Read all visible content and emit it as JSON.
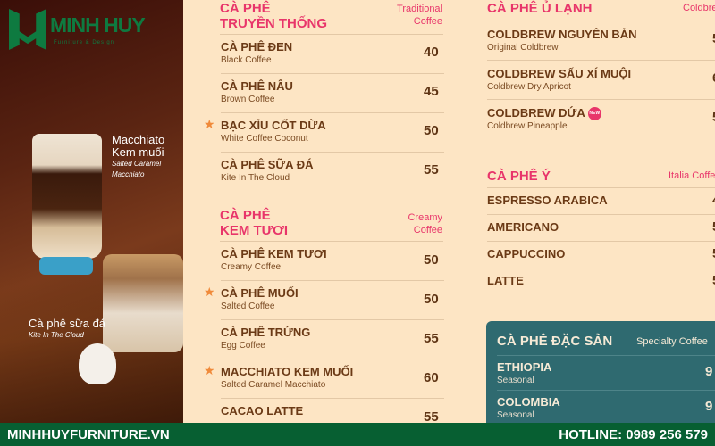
{
  "brand": {
    "name": "MINH HUY",
    "tagline": "Furniture & Design",
    "color": "#0e7a40"
  },
  "photo": {
    "caption1": {
      "title": "Macchiato Kem muối",
      "sub": "Salted Caramel Macchiato"
    },
    "caption2": {
      "title": "Cà phê sữa đá",
      "sub": "Kite In The Cloud"
    }
  },
  "traditional": {
    "title1": "CÀ PHÊ",
    "title2": "TRUYỀN THỐNG",
    "sub1": "Traditional",
    "sub2": "Coffee",
    "items": [
      {
        "name": "CÀ PHÊ ĐEN",
        "sub": "Black Coffee",
        "price": "40"
      },
      {
        "name": "CÀ PHÊ NÂU",
        "sub": "Brown Coffee",
        "price": "45"
      },
      {
        "name": "BẠC XỈU CỐT DỪA",
        "sub": "White Coffee Coconut",
        "price": "50",
        "star": true
      },
      {
        "name": "CÀ PHÊ SỮA ĐÁ",
        "sub": "Kite In The Cloud",
        "price": "55"
      }
    ]
  },
  "creamy": {
    "title1": "CÀ PHÊ",
    "title2": "KEM TƯƠI",
    "sub1": "Creamy",
    "sub2": "Coffee",
    "items": [
      {
        "name": "CÀ PHÊ KEM TƯƠI",
        "sub": "Creamy Coffee",
        "price": "50"
      },
      {
        "name": "CÀ PHÊ MUỐI",
        "sub": "Salted Coffee",
        "price": "50",
        "star": true
      },
      {
        "name": "CÀ PHÊ TRỨNG",
        "sub": "Egg Coffee",
        "price": "55"
      },
      {
        "name": "MACCHIATO KEM MUỐI",
        "sub": "Salted Caramel Macchiato",
        "price": "60",
        "star": true
      },
      {
        "name": "CACAO LATTE",
        "sub": "",
        "price": "55"
      }
    ]
  },
  "coldbrew": {
    "title": "CÀ PHÊ Ủ LẠNH",
    "sub": "Coldbrew",
    "items": [
      {
        "name": "COLDBREW NGUYÊN BẢN",
        "sub": "Original Coldbrew",
        "price": "5"
      },
      {
        "name": "COLDBREW SẤU XÍ MUỘI",
        "sub": "Coldbrew Dry Apricot",
        "price": "6"
      },
      {
        "name": "COLDBREW DỨA",
        "sub": "Coldbrew Pineapple",
        "price": "5",
        "badge": "NEW"
      }
    ]
  },
  "italia": {
    "title": "CÀ PHÊ Ý",
    "sub": "Italia Coffee",
    "items": [
      {
        "name": "ESPRESSO ARABICA",
        "price": "4"
      },
      {
        "name": "AMERICANO",
        "price": "5"
      },
      {
        "name": "CAPPUCCINO",
        "price": "5"
      },
      {
        "name": "LATTE",
        "price": "5"
      }
    ]
  },
  "specialty": {
    "title": "CÀ PHÊ ĐẶC SẢN",
    "sub": "Specialty Coffee",
    "bg": "#2f6a70",
    "items": [
      {
        "name": "ETHIOPIA",
        "sub": "Seasonal",
        "price": "9"
      },
      {
        "name": "COLOMBIA",
        "sub": "Seasonal",
        "price": "9"
      }
    ]
  },
  "banner": {
    "website": "MINHHUYFURNITURE.VN",
    "hotline": "HOTLINE: 0989 256 579",
    "bg": "#075f32"
  }
}
